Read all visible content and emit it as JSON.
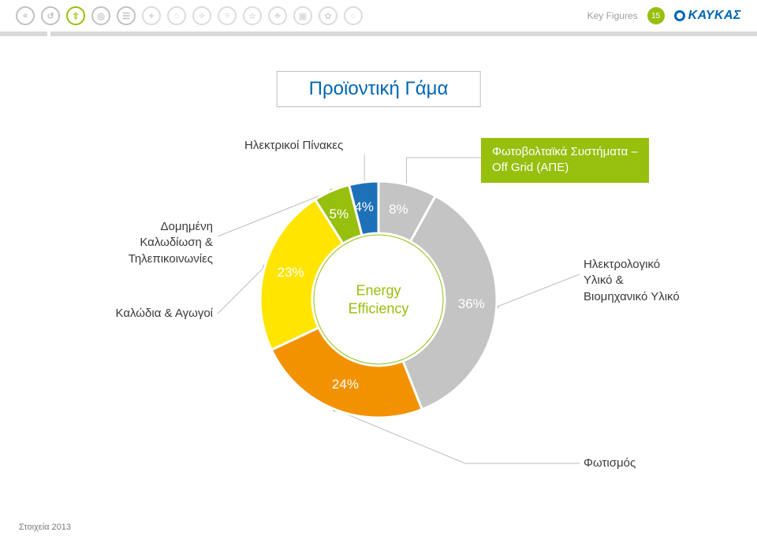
{
  "header": {
    "key_figures": "Key Figures",
    "page_number": "15",
    "page_badge_bg": "#97bf0d",
    "brand": "ΚΑΥΚΑΣ",
    "nav_icons": [
      {
        "glyph": "«",
        "border": "#c1c1c1",
        "color": "#c1c1c1"
      },
      {
        "glyph": "↺",
        "border": "#c1c1c1",
        "color": "#c1c1c1"
      },
      {
        "glyph": "⇧",
        "border": "#97bf0d",
        "color": "#97bf0d"
      },
      {
        "glyph": "◎",
        "border": "#c1c1c1",
        "color": "#c1c1c1"
      },
      {
        "glyph": "☰",
        "border": "#c1c1c1",
        "color": "#c1c1c1"
      },
      {
        "glyph": "✦",
        "border": "#dcdcdc",
        "color": "#dcdcdc"
      },
      {
        "glyph": "⌂",
        "border": "#dcdcdc",
        "color": "#dcdcdc"
      },
      {
        "glyph": "✧",
        "border": "#dcdcdc",
        "color": "#dcdcdc"
      },
      {
        "glyph": "≡",
        "border": "#dcdcdc",
        "color": "#dcdcdc"
      },
      {
        "glyph": "☆",
        "border": "#dcdcdc",
        "color": "#dcdcdc"
      },
      {
        "glyph": "♣",
        "border": "#dcdcdc",
        "color": "#dcdcdc"
      },
      {
        "glyph": "▣",
        "border": "#dcdcdc",
        "color": "#dcdcdc"
      },
      {
        "glyph": "✿",
        "border": "#dcdcdc",
        "color": "#dcdcdc"
      },
      {
        "glyph": "☼",
        "border": "#dcdcdc",
        "color": "#dcdcdc"
      }
    ]
  },
  "title": "Προϊοντική Γάμα",
  "chart": {
    "type": "donut",
    "center_label_line1": "Energy",
    "center_label_line2": "Efficiency",
    "center_label_color": "#97bf0d",
    "background_color": "#ffffff",
    "slices": [
      {
        "id": "photovoltaic",
        "value": 8,
        "color": "#c4c4c4",
        "pct_label": "8%"
      },
      {
        "id": "electrical",
        "value": 36,
        "color": "#c4c4c4",
        "pct_label": "36%"
      },
      {
        "id": "lighting",
        "value": 24,
        "color": "#f39200",
        "pct_label": "24%"
      },
      {
        "id": "cables",
        "value": 23,
        "color": "#ffe500",
        "pct_label": "23%"
      },
      {
        "id": "structured",
        "value": 5,
        "color": "#97bf0d",
        "pct_label": "5%"
      },
      {
        "id": "panels",
        "value": 4,
        "color": "#1d71b8",
        "pct_label": "4%"
      }
    ],
    "outer_radius": 150,
    "inner_radius": 84,
    "center_fill": "#ffffff",
    "start_angle_deg": -90
  },
  "labels": {
    "panels": "Ηλεκτρικοί Πίνακες",
    "photovoltaic_line1": "Φωτοβολταϊκά Συστήματα –",
    "photovoltaic_line2": "Off Grid (ΑΠΕ)",
    "photovoltaic_bg": "#97bf0d",
    "structured_line1": "Δομημένη",
    "structured_line2": "Καλωδίωση &",
    "structured_line3": "Τηλεπικοινωνίες",
    "cables": "Καλώδια & Αγωγοί",
    "electrical_line1": "Ηλεκτρολογικό",
    "electrical_line2": "Υλικό &",
    "electrical_line3": "Βιομηχανικό Υλικό",
    "lighting": "Φωτισμός"
  },
  "footer": "Στοιχεία 2013",
  "connector_color": "#bdbdbd"
}
